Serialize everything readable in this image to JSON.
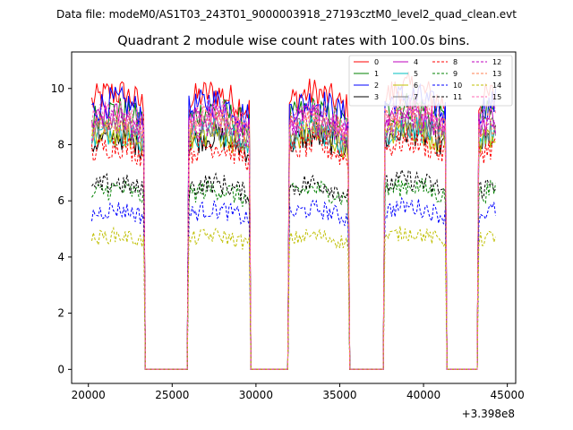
{
  "header": {
    "data_file": "Data file: modeM0/AS1T03_243T01_9000003918_27193cztM0_level2_quad_clean.evt"
  },
  "chart_data": {
    "type": "line",
    "title": "Quadrant 2 module wise count rates with 100.0s bins.",
    "xlabel": "",
    "ylabel": "",
    "x_offset_label": "+3.398e8",
    "xlim": [
      19000,
      45500
    ],
    "ylim": [
      -0.5,
      11.3
    ],
    "x_ticks": [
      20000,
      25000,
      30000,
      35000,
      40000,
      45000
    ],
    "x_tick_labels": [
      "20000",
      "25000",
      "30000",
      "35000",
      "40000",
      "45000"
    ],
    "y_ticks": [
      0,
      2,
      4,
      6,
      8,
      10
    ],
    "y_tick_labels": [
      "0",
      "2",
      "4",
      "6",
      "8",
      "10"
    ],
    "legend_location": "top-right",
    "segments": [
      {
        "start": 20200,
        "end": 23300
      },
      {
        "start": 26000,
        "end": 29600
      },
      {
        "start": 32000,
        "end": 35500
      },
      {
        "start": 37700,
        "end": 41300
      },
      {
        "start": 43300,
        "end": 44300
      }
    ],
    "gap_level": 0,
    "series": [
      {
        "name": "0",
        "color": "#ff0000",
        "style": "solid",
        "level": 9.5
      },
      {
        "name": "1",
        "color": "#008000",
        "style": "solid",
        "level": 8.9
      },
      {
        "name": "2",
        "color": "#0000ff",
        "style": "solid",
        "level": 9.2
      },
      {
        "name": "3",
        "color": "#000000",
        "style": "solid",
        "level": 8.0
      },
      {
        "name": "4",
        "color": "#bf00bf",
        "style": "solid",
        "level": 8.7
      },
      {
        "name": "5",
        "color": "#00bfbf",
        "style": "solid",
        "level": 8.2
      },
      {
        "name": "6",
        "color": "#bfbf00",
        "style": "solid",
        "level": 8.1
      },
      {
        "name": "7",
        "color": "#7f7f7f",
        "style": "solid",
        "level": 8.3
      },
      {
        "name": "8",
        "color": "#ff0000",
        "style": "dashed",
        "level": 7.7
      },
      {
        "name": "9",
        "color": "#008000",
        "style": "dashed",
        "level": 6.2
      },
      {
        "name": "10",
        "color": "#0000ff",
        "style": "dashed",
        "level": 5.5
      },
      {
        "name": "11",
        "color": "#000000",
        "style": "dashed",
        "level": 6.4
      },
      {
        "name": "12",
        "color": "#bf00bf",
        "style": "dashed",
        "level": 8.5
      },
      {
        "name": "13",
        "color": "#ff7f50",
        "style": "dashed",
        "level": 8.6
      },
      {
        "name": "14",
        "color": "#bfbf00",
        "style": "dashed",
        "level": 4.6
      },
      {
        "name": "15",
        "color": "#ff69b4",
        "style": "dashed",
        "level": 8.8
      }
    ]
  }
}
